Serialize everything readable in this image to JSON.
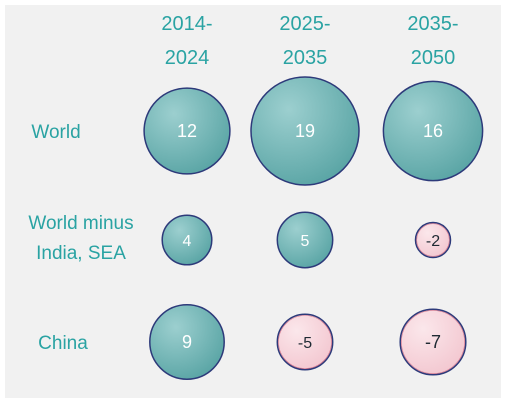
{
  "chart_data": {
    "type": "bubble",
    "columns": [
      "2014-\n2024",
      "2025-\n2035",
      "2035-\n2050"
    ],
    "rows": [
      "World",
      "World minus\nIndia, SEA",
      "China"
    ],
    "values": [
      [
        12,
        19,
        16
      ],
      [
        4,
        5,
        -2
      ],
      [
        9,
        -5,
        -7
      ]
    ],
    "value_labels": [
      [
        "12",
        "19",
        "16"
      ],
      [
        "4",
        "5",
        "-2"
      ],
      [
        "9",
        "-5",
        "-7"
      ]
    ],
    "title": "",
    "xlabel": "",
    "ylabel": "",
    "size_encoding": "absolute value",
    "grid": false,
    "legend": "none"
  },
  "colors": {
    "header_text": "#2aa3a3",
    "row_text": "#2aa3a3",
    "positive_fill": "#5aa5a5",
    "positive_fill_light": "#9ccfcf",
    "negative_fill": "#f3c7d0",
    "negative_fill_light": "#fbe7eb",
    "positive_value_text": "#ffffff",
    "negative_value_text": "#1f2a33",
    "bubble_stroke": "#2d3a7a",
    "negative_stroke": "#c03553",
    "panel_bg": "#f1f1f1"
  }
}
